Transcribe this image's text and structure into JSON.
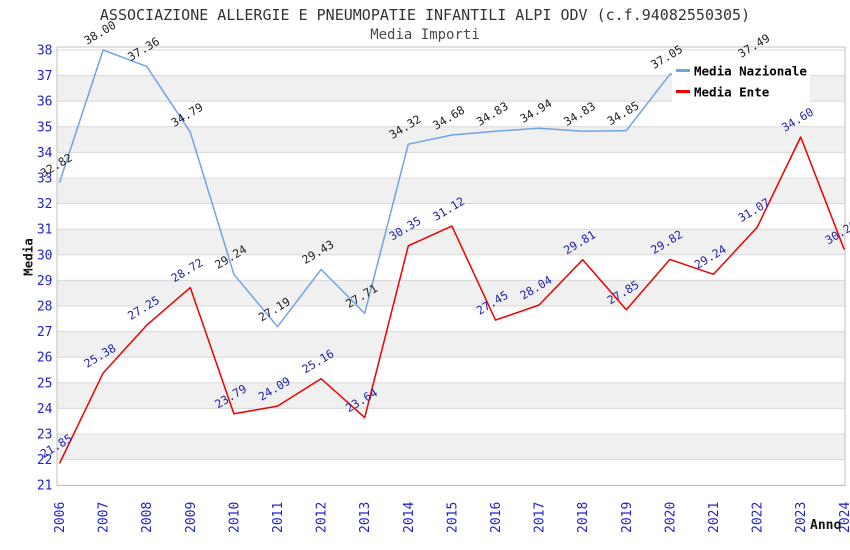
{
  "header": {
    "title": "ASSOCIAZIONE ALLERGIE E PNEUMOPATIE INFANTILI ALPI ODV (c.f.94082550305)",
    "subtitle": "Media Importi"
  },
  "chart_data": {
    "type": "line",
    "x": [
      2006,
      2007,
      2008,
      2009,
      2010,
      2011,
      2012,
      2013,
      2014,
      2015,
      2016,
      2017,
      2018,
      2019,
      2020,
      2021,
      2022,
      2023,
      2024
    ],
    "xlabel": "Anno",
    "ylabel": "Media",
    "ylim": [
      21,
      38
    ],
    "y_tick_step": 1,
    "grid": "horizontal gridlines with alternating light-gray unit bands",
    "legend_position": "top-right-inside",
    "colors": {
      "tick_label": "#2222cc",
      "gridline": "#d8d8d8",
      "band_fill": "#f0f0f0",
      "plot_border": "#c0c0c0",
      "legend_background": "#ffffff",
      "legend_text": "#000000"
    },
    "series": [
      {
        "name": "Media Nazionale",
        "color": "#6fa3e3",
        "label_color": "#222222",
        "values": [
          32.82,
          38.0,
          37.36,
          34.79,
          29.24,
          27.19,
          29.43,
          27.71,
          34.32,
          34.68,
          34.83,
          34.94,
          34.83,
          34.85,
          37.05,
          null,
          37.49,
          null,
          null
        ]
      },
      {
        "name": "Media Ente",
        "color": "#ee0000",
        "label_color": "#2222aa",
        "values": [
          21.85,
          25.38,
          27.25,
          28.72,
          23.79,
          24.09,
          25.16,
          23.64,
          30.35,
          31.12,
          27.45,
          28.04,
          29.81,
          27.85,
          29.82,
          29.24,
          31.07,
          34.6,
          30.2
        ]
      }
    ]
  }
}
